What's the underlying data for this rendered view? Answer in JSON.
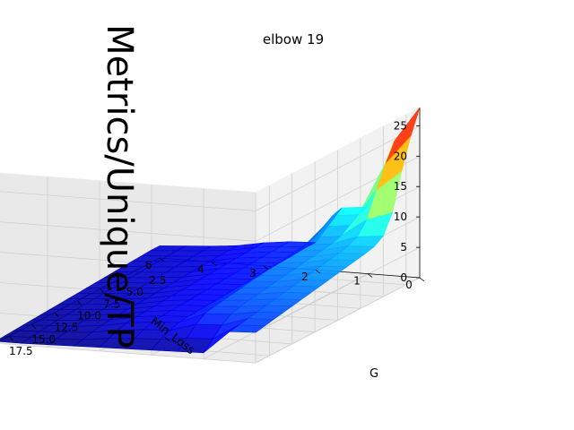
{
  "chart_data": {
    "type": "surface3d",
    "title": "elbow 19",
    "zlabel": "Metrics/Unique/TP",
    "ylabel": "Min_Loss",
    "xlabel": "G",
    "colormap": "jet",
    "grid": true,
    "x_ticks": [
      2.5,
      5.0,
      7.5,
      10.0,
      12.5,
      15.0,
      17.5
    ],
    "x_tick_labels": [
      "2.5",
      "5.0",
      "7.5",
      "10.0",
      "12.5",
      "15.0",
      "17.5"
    ],
    "y_ticks": [
      0,
      1,
      2,
      3,
      4,
      5
    ],
    "y_tick_labels": [
      "0",
      "1",
      "2",
      "3",
      "4",
      "5"
    ],
    "z_ticks": [
      0,
      5,
      10,
      15,
      20,
      25
    ],
    "z_tick_labels": [
      "0",
      "5",
      "10",
      "15",
      "20",
      "25"
    ],
    "xlim": [
      1,
      19
    ],
    "ylim": [
      0,
      5
    ],
    "zlim": [
      0,
      28
    ],
    "G": [
      1,
      2,
      3,
      4,
      5,
      6,
      7,
      8,
      9,
      10,
      11,
      12,
      13,
      14,
      15,
      16,
      17,
      18,
      19
    ],
    "Min_Loss": [
      0,
      0.5,
      1,
      1.5,
      2,
      2.5,
      3,
      3.5,
      4,
      4.5,
      5
    ],
    "Z": [
      [
        28.0,
        24.0,
        19.0,
        13.0,
        10.0,
        9.0,
        8.6,
        8.3,
        8.0,
        7.7,
        7.4,
        7.1,
        6.8,
        6.5,
        6.2,
        5.9,
        5.6,
        5.3,
        5.0
      ],
      [
        22.0,
        19.0,
        15.5,
        11.5,
        9.5,
        8.8,
        8.4,
        8.1,
        7.8,
        7.5,
        7.2,
        6.9,
        6.6,
        6.3,
        6.0,
        5.7,
        5.4,
        5.1,
        4.8
      ],
      [
        11.0,
        10.5,
        9.5,
        8.5,
        8.0,
        7.8,
        7.5,
        7.3,
        7.0,
        6.8,
        6.5,
        6.3,
        6.0,
        5.8,
        5.5,
        5.0,
        4.0,
        2.5,
        1.0
      ],
      [
        10.5,
        10.0,
        9.0,
        8.0,
        7.6,
        7.3,
        7.1,
        6.9,
        6.7,
        6.4,
        6.2,
        5.9,
        5.7,
        5.4,
        5.2,
        4.8,
        3.8,
        2.3,
        0.9
      ],
      [
        4.5,
        4.5,
        4.4,
        4.3,
        4.2,
        4.1,
        4.0,
        3.9,
        3.8,
        3.7,
        3.6,
        3.5,
        3.4,
        3.3,
        3.2,
        3.0,
        2.5,
        1.8,
        0.8
      ],
      [
        4.3,
        4.3,
        4.2,
        4.1,
        4.0,
        3.9,
        3.8,
        3.7,
        3.6,
        3.5,
        3.4,
        3.3,
        3.2,
        3.1,
        3.0,
        2.8,
        2.3,
        1.6,
        0.7
      ],
      [
        3.8,
        3.8,
        3.7,
        3.6,
        3.5,
        3.4,
        3.3,
        3.2,
        3.1,
        3.0,
        2.9,
        2.8,
        2.7,
        2.6,
        2.5,
        2.3,
        1.9,
        1.3,
        0.6
      ],
      [
        3.0,
        3.0,
        2.9,
        2.8,
        2.7,
        2.6,
        2.5,
        2.4,
        2.3,
        2.2,
        2.1,
        2.0,
        1.9,
        1.8,
        1.7,
        1.5,
        1.2,
        0.8,
        0.5
      ],
      [
        2.6,
        2.6,
        2.5,
        2.4,
        2.3,
        2.2,
        2.1,
        2.0,
        1.9,
        1.8,
        1.7,
        1.6,
        1.5,
        1.4,
        1.3,
        1.1,
        0.9,
        0.6,
        0.4
      ],
      [
        2.3,
        2.3,
        2.2,
        2.1,
        2.0,
        1.9,
        1.8,
        1.7,
        1.6,
        1.5,
        1.4,
        1.3,
        1.2,
        1.1,
        1.0,
        0.9,
        0.7,
        0.5,
        0.3
      ],
      [
        2.0,
        2.0,
        1.9,
        1.8,
        1.7,
        1.6,
        1.5,
        1.4,
        1.3,
        1.2,
        1.1,
        1.0,
        0.9,
        0.8,
        0.7,
        0.6,
        0.5,
        0.4,
        0.3
      ]
    ]
  }
}
